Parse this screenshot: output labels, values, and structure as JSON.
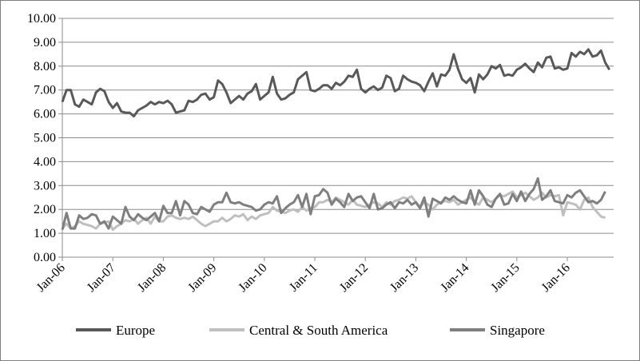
{
  "chart_data": {
    "type": "line",
    "title": "",
    "xlabel": "",
    "ylabel": "",
    "ylim": [
      0,
      10
    ],
    "y_ticks": [
      "0.00",
      "1.00",
      "2.00",
      "3.00",
      "4.00",
      "5.00",
      "6.00",
      "7.00",
      "8.00",
      "9.00",
      "10.00"
    ],
    "x_tick_labels": [
      "Jan-06",
      "Jan-07",
      "Jan-08",
      "Jan-09",
      "Jan-10",
      "Jan-11",
      "Jan-12",
      "Jan-13",
      "Jan-14",
      "Jan-15",
      "Jan-16"
    ],
    "x_start": "2006-01",
    "x_interval": "monthly",
    "grid": "horizontal",
    "legend_position": "bottom",
    "series": [
      {
        "name": "Europe",
        "color": "#595959",
        "values": [
          6.5,
          7.0,
          7.0,
          6.4,
          6.3,
          6.6,
          6.5,
          6.4,
          6.9,
          7.05,
          6.95,
          6.5,
          6.25,
          6.45,
          6.1,
          6.05,
          6.05,
          5.9,
          6.15,
          6.25,
          6.35,
          6.5,
          6.4,
          6.5,
          6.45,
          6.55,
          6.4,
          6.05,
          6.1,
          6.15,
          6.55,
          6.5,
          6.6,
          6.8,
          6.85,
          6.6,
          6.7,
          7.4,
          7.25,
          6.9,
          6.45,
          6.6,
          6.75,
          6.6,
          6.85,
          6.95,
          7.25,
          6.6,
          6.75,
          6.9,
          7.55,
          6.85,
          6.6,
          6.65,
          6.8,
          6.9,
          7.45,
          7.6,
          7.75,
          7.0,
          6.95,
          7.05,
          7.2,
          7.2,
          7.05,
          7.3,
          7.2,
          7.35,
          7.6,
          7.55,
          7.85,
          7.05,
          6.9,
          7.05,
          7.15,
          7.0,
          7.1,
          7.6,
          7.5,
          6.95,
          7.05,
          7.6,
          7.45,
          7.35,
          7.3,
          7.2,
          6.95,
          7.35,
          7.7,
          7.15,
          7.65,
          7.6,
          7.85,
          8.5,
          7.9,
          7.45,
          7.3,
          7.5,
          6.9,
          7.65,
          7.45,
          7.65,
          8.0,
          7.9,
          8.05,
          7.6,
          7.65,
          7.6,
          7.85,
          7.95,
          8.1,
          7.9,
          7.75,
          8.15,
          7.95,
          8.35,
          8.4,
          7.9,
          7.95,
          7.85,
          7.9,
          8.55,
          8.4,
          8.6,
          8.5,
          8.7,
          8.4,
          8.45,
          8.65,
          8.15,
          7.85
        ]
      },
      {
        "name": "Central & South America",
        "color": "#bfbfbf",
        "values": [
          1.2,
          1.4,
          1.2,
          1.3,
          1.5,
          1.4,
          1.35,
          1.3,
          1.2,
          1.4,
          1.45,
          1.5,
          1.15,
          1.3,
          1.4,
          1.55,
          1.5,
          1.6,
          1.4,
          1.55,
          1.65,
          1.4,
          1.7,
          1.5,
          1.5,
          1.7,
          1.75,
          1.65,
          1.6,
          1.65,
          1.6,
          1.7,
          1.55,
          1.4,
          1.3,
          1.4,
          1.5,
          1.5,
          1.65,
          1.5,
          1.6,
          1.75,
          1.7,
          1.8,
          1.55,
          1.7,
          1.6,
          1.75,
          1.8,
          1.85,
          2.1,
          1.95,
          1.9,
          1.85,
          1.95,
          2.0,
          1.9,
          2.1,
          1.95,
          2.05,
          2.1,
          2.3,
          2.3,
          2.4,
          2.3,
          2.5,
          2.4,
          2.3,
          2.2,
          2.4,
          2.2,
          2.15,
          2.1,
          2.2,
          2.3,
          2.25,
          2.1,
          2.3,
          2.2,
          2.35,
          2.4,
          2.5,
          2.45,
          2.55,
          2.3,
          2.1,
          2.3,
          2.2,
          2.0,
          2.2,
          2.3,
          2.35,
          2.3,
          2.4,
          2.2,
          2.3,
          2.4,
          2.5,
          2.3,
          2.2,
          2.5,
          2.4,
          2.3,
          2.45,
          2.6,
          2.55,
          2.65,
          2.75,
          2.5,
          2.6,
          2.7,
          2.55,
          2.4,
          2.5,
          2.7,
          2.5,
          2.6,
          2.55,
          2.6,
          1.75,
          2.3,
          2.25,
          2.2,
          2.0,
          2.4,
          2.5,
          2.1,
          1.9,
          1.7,
          1.65
        ]
      },
      {
        "name": "Singapore",
        "color": "#7f7f7f",
        "values": [
          1.15,
          1.85,
          1.2,
          1.2,
          1.75,
          1.6,
          1.65,
          1.8,
          1.75,
          1.4,
          1.5,
          1.2,
          1.7,
          1.55,
          1.4,
          2.1,
          1.7,
          1.55,
          1.8,
          1.65,
          1.55,
          1.7,
          1.85,
          1.5,
          2.15,
          1.85,
          1.85,
          2.35,
          1.75,
          2.35,
          2.2,
          1.85,
          1.8,
          2.1,
          2.0,
          1.9,
          2.2,
          2.3,
          2.3,
          2.7,
          2.3,
          2.25,
          2.3,
          2.2,
          2.15,
          2.1,
          1.95,
          2.0,
          2.2,
          2.3,
          2.25,
          2.55,
          1.85,
          2.05,
          2.2,
          2.3,
          2.6,
          2.1,
          2.65,
          1.8,
          2.55,
          2.6,
          2.85,
          2.7,
          2.2,
          2.45,
          2.3,
          2.1,
          2.65,
          2.35,
          2.5,
          2.55,
          2.3,
          2.05,
          2.65,
          2.0,
          2.05,
          2.2,
          2.3,
          2.05,
          2.3,
          2.25,
          2.4,
          2.2,
          2.3,
          2.05,
          2.5,
          1.7,
          2.45,
          2.35,
          2.25,
          2.5,
          2.4,
          2.55,
          2.4,
          2.3,
          2.25,
          2.8,
          2.2,
          2.8,
          2.55,
          2.2,
          2.1,
          2.45,
          2.65,
          2.2,
          2.25,
          2.65,
          2.35,
          2.75,
          2.35,
          2.65,
          2.85,
          3.3,
          2.4,
          2.55,
          2.8,
          2.35,
          2.3,
          2.25,
          2.6,
          2.5,
          2.7,
          2.8,
          2.55,
          2.3,
          2.35,
          2.25,
          2.4,
          2.75
        ]
      }
    ]
  }
}
